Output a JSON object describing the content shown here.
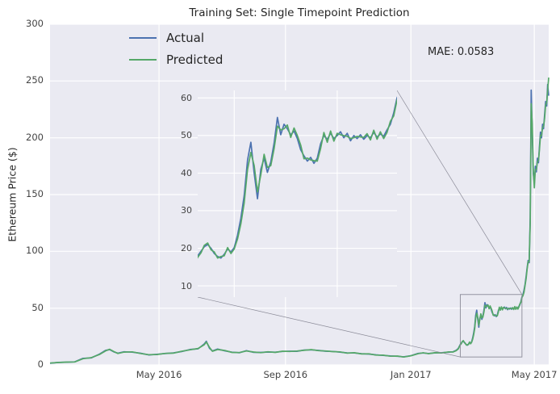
{
  "chart_data": {
    "type": "line",
    "title": "Training Set: Single Timepoint Prediction",
    "ylabel": "Ethereum Price ($)",
    "xlabel": "",
    "annotation": "MAE: 0.0583",
    "legend_position": "upper left inside",
    "grid": true,
    "colors": {
      "actual": "#4c72b0",
      "predicted": "#55a868",
      "axes_bg": "#eaeaf2",
      "grid": "#ffffff",
      "text": "#262626",
      "zoom_box": "#8a8a97"
    },
    "xlim": [
      0,
      485
    ],
    "ylim": [
      0,
      300
    ],
    "yticks": [
      0,
      50,
      100,
      150,
      200,
      250,
      300
    ],
    "xticks": [
      {
        "pos": 106,
        "label": "May 2016"
      },
      {
        "pos": 229,
        "label": "Sep 2016"
      },
      {
        "pos": 351,
        "label": "Jan 2017"
      },
      {
        "pos": 471,
        "label": "May 2017"
      }
    ],
    "x": [
      0,
      8,
      16,
      24,
      32,
      40,
      48,
      54,
      58,
      62,
      66,
      72,
      80,
      88,
      96,
      104,
      112,
      120,
      128,
      136,
      144,
      150,
      152,
      155,
      158,
      163,
      170,
      177,
      184,
      191,
      198,
      205,
      212,
      219,
      226,
      233,
      240,
      247,
      254,
      261,
      268,
      275,
      282,
      289,
      296,
      303,
      310,
      317,
      324,
      331,
      338,
      344,
      351,
      358,
      363,
      368,
      374,
      381,
      388,
      392,
      395,
      397,
      398,
      399,
      400,
      401,
      402,
      403,
      404,
      405,
      406,
      407,
      408,
      409,
      410,
      411,
      412,
      413,
      414,
      415,
      416,
      417,
      418,
      419,
      420,
      421,
      422,
      423,
      424,
      425,
      426,
      427,
      428,
      429,
      430,
      431,
      432,
      433,
      434,
      435,
      436,
      437,
      438,
      439,
      440,
      441,
      442,
      443,
      444,
      445,
      446,
      447,
      448,
      449,
      450,
      451,
      452,
      453,
      454,
      455,
      456,
      457,
      458,
      459,
      460,
      461,
      462,
      463,
      464,
      465,
      466,
      467,
      468,
      469,
      470,
      471,
      472,
      473,
      474,
      475,
      476,
      477,
      478,
      479,
      480,
      481,
      482,
      483,
      484,
      485
    ],
    "series": [
      {
        "name": "Actual",
        "color": "#4c72b0",
        "values": [
          1.5,
          2.2,
          2.4,
          2.7,
          5.8,
          6.2,
          9.5,
          12.8,
          13.5,
          11.5,
          10.4,
          11.6,
          11.2,
          10.3,
          8.8,
          9.4,
          10.0,
          10.6,
          11.8,
          13.6,
          14.2,
          18.5,
          20.8,
          14.8,
          12.3,
          14.0,
          12.4,
          11.2,
          10.7,
          12.6,
          11.1,
          11.0,
          11.4,
          11.2,
          11.9,
          12.1,
          12.0,
          13.1,
          13.3,
          12.8,
          12.1,
          11.9,
          11.3,
          10.6,
          10.5,
          9.9,
          9.6,
          8.9,
          8.4,
          7.9,
          7.6,
          7.1,
          8.2,
          10.2,
          10.5,
          10.1,
          10.5,
          10.8,
          11.3,
          11.6,
          12.9,
          14.5,
          16.2,
          18.0,
          19.2,
          20.4,
          21.0,
          20.0,
          18.6,
          17.8,
          17.4,
          18.4,
          19.8,
          19.0,
          20.2,
          23.5,
          28.0,
          34.0,
          43.5,
          48.2,
          40.0,
          33.2,
          41.0,
          44.0,
          40.2,
          43.0,
          48.0,
          54.8,
          50.2,
          53.0,
          51.8,
          50.2,
          51.2,
          49.2,
          46.2,
          44.6,
          43.2,
          44.2,
          42.6,
          44.0,
          47.8,
          50.0,
          49.0,
          50.6,
          49.2,
          50.0,
          51.0,
          49.4,
          50.6,
          48.6,
          50.0,
          49.2,
          50.2,
          49.0,
          50.0,
          49.4,
          50.8,
          49.6,
          50.4,
          49.8,
          51.5,
          53.0,
          56.0,
          60.0,
          62,
          66,
          71,
          78,
          85,
          92,
          90,
          130,
          242,
          205,
          168,
          160,
          175,
          170,
          182,
          178,
          192,
          205,
          200,
          212,
          208,
          220,
          232,
          228,
          247,
          237
        ]
      },
      {
        "name": "Predicted",
        "color": "#55a868",
        "values": [
          1.6,
          2.1,
          2.5,
          2.6,
          5.5,
          6.4,
          9.2,
          12.4,
          13.8,
          11.8,
          10.1,
          11.3,
          11.5,
          10.1,
          9.0,
          9.2,
          10.2,
          10.4,
          12.0,
          13.3,
          14.5,
          17.8,
          20.2,
          15.6,
          12.0,
          13.6,
          12.7,
          11.0,
          10.9,
          12.3,
          11.4,
          10.8,
          11.6,
          11.0,
          12.1,
          11.9,
          12.2,
          12.9,
          13.5,
          12.6,
          12.3,
          11.7,
          11.5,
          10.4,
          10.7,
          9.7,
          9.8,
          8.7,
          8.6,
          7.7,
          7.8,
          7.0,
          8.0,
          9.9,
          10.7,
          9.9,
          10.7,
          10.6,
          11.5,
          11.4,
          12.6,
          14.1,
          15.8,
          17.6,
          18.8,
          20.8,
          21.4,
          19.6,
          19.0,
          17.4,
          17.8,
          18.0,
          20.2,
          18.6,
          19.8,
          22.5,
          26.5,
          32.0,
          41.0,
          45.5,
          42.0,
          35.0,
          39.5,
          45.0,
          41.5,
          42.0,
          46.5,
          52.5,
          51.5,
          51.8,
          52.8,
          49.5,
          52.0,
          50.0,
          47.5,
          43.8,
          44.0,
          43.5,
          43.3,
          43.2,
          46.5,
          50.8,
          48.2,
          51.2,
          48.5,
          50.6,
          50.2,
          50.0,
          49.8,
          49.2,
          49.4,
          49.8,
          49.6,
          49.5,
          50.5,
          48.8,
          51.4,
          49.0,
          51.0,
          49.2,
          50.8,
          53.8,
          55.2,
          59.4,
          61,
          64,
          70,
          76,
          84,
          91,
          91,
          125,
          230,
          212,
          172,
          156,
          172,
          172,
          179,
          180,
          189,
          202,
          202,
          209,
          210,
          217,
          229,
          231,
          242,
          253
        ]
      }
    ],
    "inset": {
      "description": "zoom inset of boxed region",
      "xlim": [
        399,
        459
      ],
      "ylim": [
        7,
        62
      ],
      "yticks": [
        10,
        20,
        30,
        40,
        50,
        60
      ],
      "xgrid": [
        410,
        441
      ]
    }
  }
}
